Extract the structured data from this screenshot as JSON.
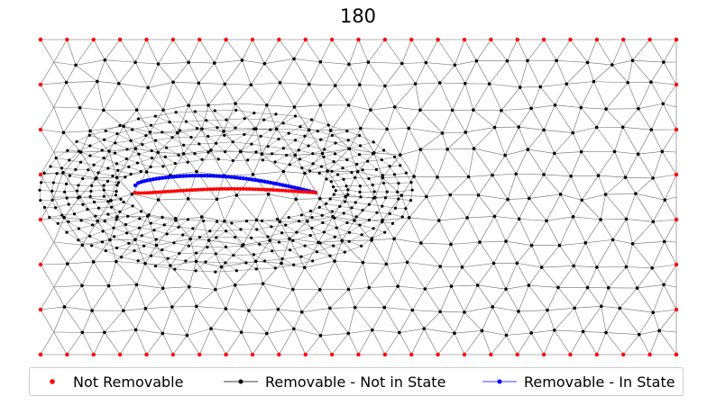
{
  "title": "180",
  "legend": [
    {
      "label": "Not Removable",
      "color": "#ff0000",
      "style": "dot"
    },
    {
      "label": "Removable - Not in State",
      "color": "#000000",
      "style": "line-dot"
    },
    {
      "label": "Removable - In State",
      "color": "#0000ff",
      "style": "line-dot"
    }
  ],
  "colors": {
    "edge": "#6e6e6e",
    "not_removable": "#ff0000",
    "not_in_state": "#000000",
    "in_state": "#0000ff"
  }
}
